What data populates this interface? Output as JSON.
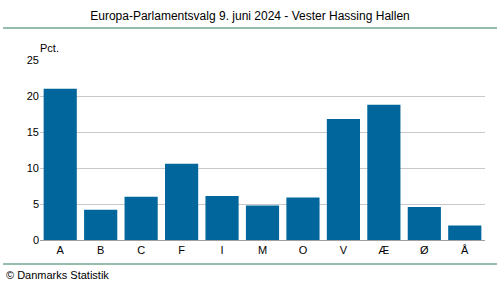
{
  "chart_data": {
    "type": "bar",
    "title": "Europa-Parlamentsvalg 9. juni 2024 - Vester Hassing Hallen",
    "ylabel": "Pct.",
    "annotations": [
      "© Danmarks Statistik"
    ],
    "categories": [
      "A",
      "B",
      "C",
      "F",
      "I",
      "M",
      "O",
      "V",
      "Æ",
      "Ø",
      "Å"
    ],
    "values": [
      21.0,
      4.2,
      6.0,
      10.6,
      6.1,
      4.8,
      5.9,
      16.8,
      18.8,
      4.6,
      2.0
    ],
    "color": "#00669b",
    "ylim": [
      0,
      25
    ],
    "yticks": [
      0,
      5,
      10,
      15,
      20,
      25
    ],
    "grid": true
  }
}
